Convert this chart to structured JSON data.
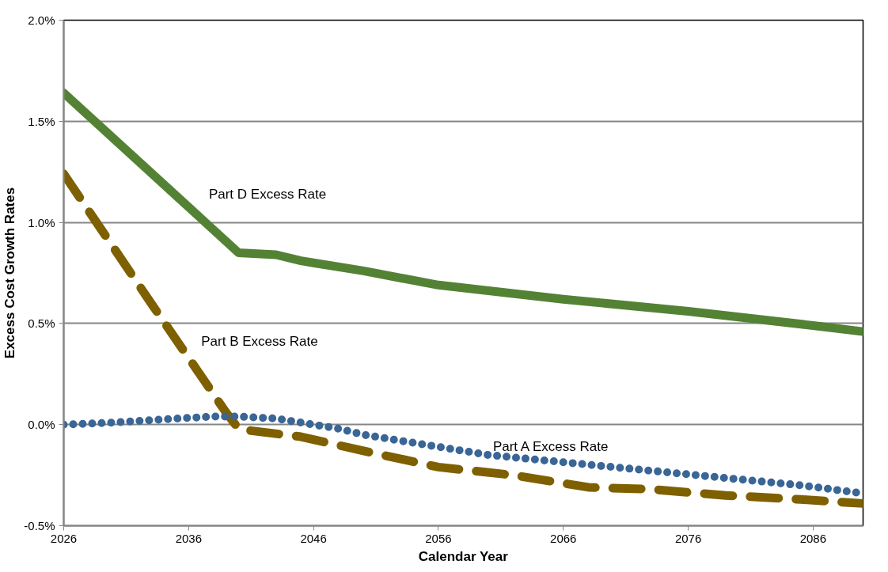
{
  "chart_data": {
    "type": "line",
    "xlabel": "Calendar Year",
    "ylabel": "Excess Cost Growth Rates",
    "xlim": [
      2026,
      2090
    ],
    "xticks": [
      2026,
      2036,
      2046,
      2056,
      2066,
      2076,
      2086
    ],
    "ylim": [
      -0.5,
      2.0
    ],
    "yticks": [
      {
        "value": -0.5,
        "label": "-0.5%"
      },
      {
        "value": 0.0,
        "label": "0.0%"
      },
      {
        "value": 0.5,
        "label": "0.5%"
      },
      {
        "value": 1.0,
        "label": "1.0%"
      },
      {
        "value": 1.5,
        "label": "1.5%"
      },
      {
        "value": 2.0,
        "label": "2.0%"
      }
    ],
    "grid": "y",
    "series": [
      {
        "name": "Part D Excess Rate",
        "color": "#548235",
        "line_style": "solid",
        "x": [
          2026,
          2040,
          2043,
          2045,
          2046,
          2050,
          2056,
          2066,
          2076,
          2086,
          2090
        ],
        "values": [
          1.64,
          0.85,
          0.84,
          0.81,
          0.8,
          0.76,
          0.69,
          0.62,
          0.56,
          0.49,
          0.46
        ]
      },
      {
        "name": "Part B Excess Rate",
        "color": "#7f6000",
        "line_style": "dashed",
        "x": [
          2026,
          2033,
          2039,
          2040,
          2041,
          2045,
          2050,
          2056,
          2062,
          2068,
          2073,
          2079,
          2085,
          2090
        ],
        "values": [
          1.24,
          0.6,
          0.06,
          -0.02,
          -0.03,
          -0.06,
          -0.13,
          -0.21,
          -0.25,
          -0.31,
          -0.32,
          -0.35,
          -0.37,
          -0.39
        ]
      },
      {
        "name": "Part A Excess Rate",
        "color": "#3a6597",
        "line_style": "dotted",
        "x": [
          2026,
          2030,
          2035,
          2038,
          2040,
          2043,
          2045,
          2046,
          2048,
          2050,
          2053,
          2056,
          2060,
          2065,
          2070,
          2075,
          2080,
          2085,
          2090
        ],
        "values": [
          0.0,
          0.01,
          0.03,
          0.04,
          0.04,
          0.03,
          0.01,
          0.0,
          -0.02,
          -0.05,
          -0.08,
          -0.11,
          -0.15,
          -0.18,
          -0.21,
          -0.24,
          -0.27,
          -0.3,
          -0.34
        ]
      }
    ]
  }
}
